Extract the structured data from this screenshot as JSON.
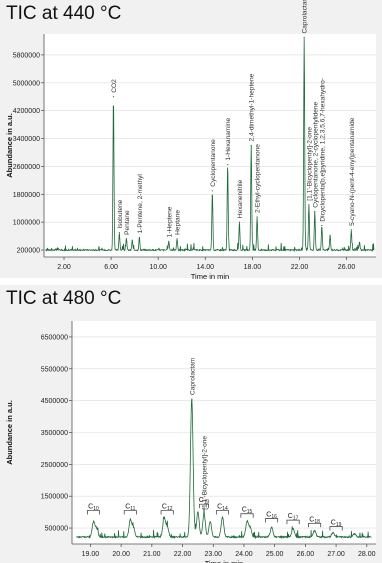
{
  "chart_data": [
    {
      "type": "line",
      "title": "TIC at 440 °C",
      "xlabel": "Time in min",
      "ylabel": "Abundance in a.u.",
      "xlim": [
        0.3,
        28.5
      ],
      "ylim": [
        0,
        6400000
      ],
      "x_ticks": [
        "2.00",
        "6.00",
        "10.00",
        "14.00",
        "18.00",
        "22.00",
        "26.00"
      ],
      "x_tick_values": [
        2,
        6,
        10,
        14,
        18,
        22,
        26
      ],
      "y_ticks": [
        "200000",
        "1000000",
        "1800000",
        "2600000",
        "3400000",
        "4200000",
        "5000000",
        "5800000"
      ],
      "y_tick_values": [
        200000,
        1000000,
        1800000,
        2600000,
        3400000,
        4200000,
        5000000,
        5800000
      ],
      "baseline": 200000,
      "peaks": [
        {
          "x": 6.2,
          "y": 4600000
        },
        {
          "x": 6.7,
          "y": 700000
        },
        {
          "x": 7.3,
          "y": 520000
        },
        {
          "x": 7.8,
          "y": 480000
        },
        {
          "x": 8.4,
          "y": 560000
        },
        {
          "x": 10.9,
          "y": 450000
        },
        {
          "x": 11.6,
          "y": 520000
        },
        {
          "x": 14.6,
          "y": 1900000
        },
        {
          "x": 15.9,
          "y": 2650000
        },
        {
          "x": 16.9,
          "y": 1000000
        },
        {
          "x": 17.9,
          "y": 3200000
        },
        {
          "x": 18.4,
          "y": 1150000
        },
        {
          "x": 22.4,
          "y": 6300000
        },
        {
          "x": 22.8,
          "y": 1500000
        },
        {
          "x": 23.3,
          "y": 1300000
        },
        {
          "x": 23.9,
          "y": 900000
        },
        {
          "x": 24.6,
          "y": 620000
        },
        {
          "x": 26.4,
          "y": 780000
        },
        {
          "x": 27.1,
          "y": 420000
        }
      ],
      "annotations": [
        {
          "text": "CO2",
          "x": 6.2
        },
        {
          "text": "Isobutene",
          "x": 6.7
        },
        {
          "text": "Pentane",
          "x": 7.3
        },
        {
          "text": "1-Pentene, 2-methyl",
          "x": 8.4
        },
        {
          "text": "1-Heptene",
          "x": 10.9
        },
        {
          "text": "Heptane",
          "x": 11.6
        },
        {
          "text": "Cyclopentanone",
          "x": 14.6
        },
        {
          "text": "1-Hexanamine",
          "x": 15.9
        },
        {
          "text": "Hexanenitrile",
          "x": 16.9
        },
        {
          "text": "2,4-dimethyl-1-heptene",
          "x": 17.9
        },
        {
          "text": "2-Ethyl-cyclopentanone",
          "x": 18.4
        },
        {
          "text": "Caprolactam",
          "x": 22.4
        },
        {
          "text": "[1,1'-Bicyclopentyl]-2-one",
          "x": 22.8
        },
        {
          "text": "Cyclopentanone, 2-cyclopentylidene",
          "x": 23.3
        },
        {
          "text": "Dicyclopenta[b,e]pyridine, 1,2,3,5,6,7-hexahydro-",
          "x": 23.9
        },
        {
          "text": "5-cyano-N-(pent-4-enyl)pentanamide",
          "x": 26.4
        }
      ]
    },
    {
      "type": "line",
      "title": "TIC at 480 °C",
      "xlabel": "Time in min",
      "ylabel": "Abundance in a.u.",
      "xlim": [
        18.4,
        28.3
      ],
      "ylim": [
        0,
        7000000
      ],
      "x_ticks": [
        "19.00",
        "20.00",
        "21.00",
        "22.00",
        "23.00",
        "24.00",
        "25.00",
        "26.00",
        "27.00",
        "28.00"
      ],
      "x_tick_values": [
        19,
        20,
        21,
        22,
        23,
        24,
        25,
        26,
        27,
        28
      ],
      "y_ticks": [
        "500000",
        "1500000",
        "2500000",
        "3500000",
        "4500000",
        "5500000",
        "6500000"
      ],
      "y_tick_values": [
        500000,
        1500000,
        2500000,
        3500000,
        4500000,
        5500000,
        6500000
      ],
      "baseline": 220000,
      "peaks": [
        {
          "x": 19.1,
          "y": 700000
        },
        {
          "x": 19.2,
          "y": 500000
        },
        {
          "x": 20.3,
          "y": 760000
        },
        {
          "x": 20.4,
          "y": 520000
        },
        {
          "x": 21.4,
          "y": 820000
        },
        {
          "x": 21.5,
          "y": 560000
        },
        {
          "x": 22.3,
          "y": 4550000
        },
        {
          "x": 22.5,
          "y": 1000000
        },
        {
          "x": 22.7,
          "y": 950000
        },
        {
          "x": 22.9,
          "y": 700000
        },
        {
          "x": 23.3,
          "y": 850000
        },
        {
          "x": 24.1,
          "y": 700000
        },
        {
          "x": 24.2,
          "y": 520000
        },
        {
          "x": 24.9,
          "y": 520000
        },
        {
          "x": 25.6,
          "y": 480000
        },
        {
          "x": 26.3,
          "y": 420000
        },
        {
          "x": 26.9,
          "y": 360000
        },
        {
          "x": 27.6,
          "y": 320000
        }
      ],
      "annotations": [
        {
          "text": "Caprolactam",
          "x": 22.3
        },
        {
          "text": "[1,1'-Bicyclopentyl]-2-one",
          "x": 22.7
        }
      ],
      "brackets": [
        {
          "label": "C",
          "sub": "10",
          "x0": 18.9,
          "x1": 19.3,
          "y": 1050000
        },
        {
          "label": "C",
          "sub": "11",
          "x0": 20.1,
          "x1": 20.5,
          "y": 1050000
        },
        {
          "label": "C",
          "sub": "12",
          "x0": 21.3,
          "x1": 21.7,
          "y": 1050000
        },
        {
          "label": "C",
          "sub": "13",
          "x0": 22.55,
          "x1": 22.85,
          "y": 1250000
        },
        {
          "label": "C",
          "sub": "14",
          "x0": 23.1,
          "x1": 23.5,
          "y": 1050000
        },
        {
          "label": "C",
          "sub": "15",
          "x0": 23.9,
          "x1": 24.3,
          "y": 950000
        },
        {
          "label": "C",
          "sub": "16",
          "x0": 24.7,
          "x1": 25.1,
          "y": 800000
        },
        {
          "label": "C",
          "sub": "17",
          "x0": 25.4,
          "x1": 25.8,
          "y": 750000
        },
        {
          "label": "C",
          "sub": "18",
          "x0": 26.1,
          "x1": 26.5,
          "y": 650000
        },
        {
          "label": "C",
          "sub": "19",
          "x0": 26.8,
          "x1": 27.2,
          "y": 550000
        }
      ]
    }
  ]
}
